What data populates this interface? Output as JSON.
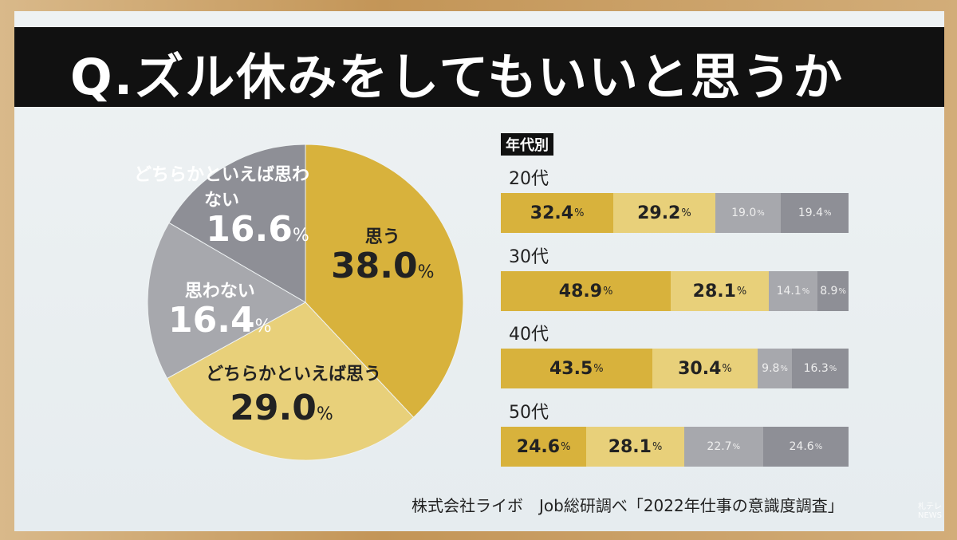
{
  "title": "Q.ズル休みをしてもいいと思うか",
  "source": "株式会社ライボ　Job総研調べ「2022年仕事の意識度調査」",
  "logo_text": "札テレ NEWS",
  "colors": {
    "omou": "#d8b23c",
    "dochiraka_omou": "#e8d07a",
    "dochiraka_omowanai": "#a7a8ad",
    "omowanai": "#8e8f96"
  },
  "chart_data": [
    {
      "type": "pie",
      "unit": "%",
      "slices": [
        {
          "label": "思う",
          "value": 38.0,
          "value_text": "38.0",
          "color": "#d8b23c"
        },
        {
          "label": "どちらかといえば思う",
          "value": 29.0,
          "value_text": "29.0",
          "color": "#e8d07a"
        },
        {
          "label": "思わない",
          "value": 16.4,
          "value_text": "16.4",
          "color": "#a7a8ad"
        },
        {
          "label": "どちらかといえば思わない",
          "value": 16.6,
          "value_text": "16.6",
          "color": "#8e8f96"
        }
      ]
    },
    {
      "type": "bar",
      "orientation": "horizontal-stacked",
      "heading": "年代別",
      "unit": "%",
      "categories": [
        "20代",
        "30代",
        "40代",
        "50代"
      ],
      "series": [
        {
          "values": [
            32.4,
            48.9,
            43.5,
            24.6
          ],
          "color": "#d8b23c"
        },
        {
          "values": [
            29.2,
            28.1,
            30.4,
            28.1
          ],
          "color": "#e8d07a"
        },
        {
          "values": [
            19.0,
            14.1,
            9.8,
            22.7
          ],
          "color": "#a7a8ad"
        },
        {
          "values": [
            19.4,
            8.9,
            16.3,
            24.6
          ],
          "color": "#8e8f96"
        }
      ]
    }
  ]
}
